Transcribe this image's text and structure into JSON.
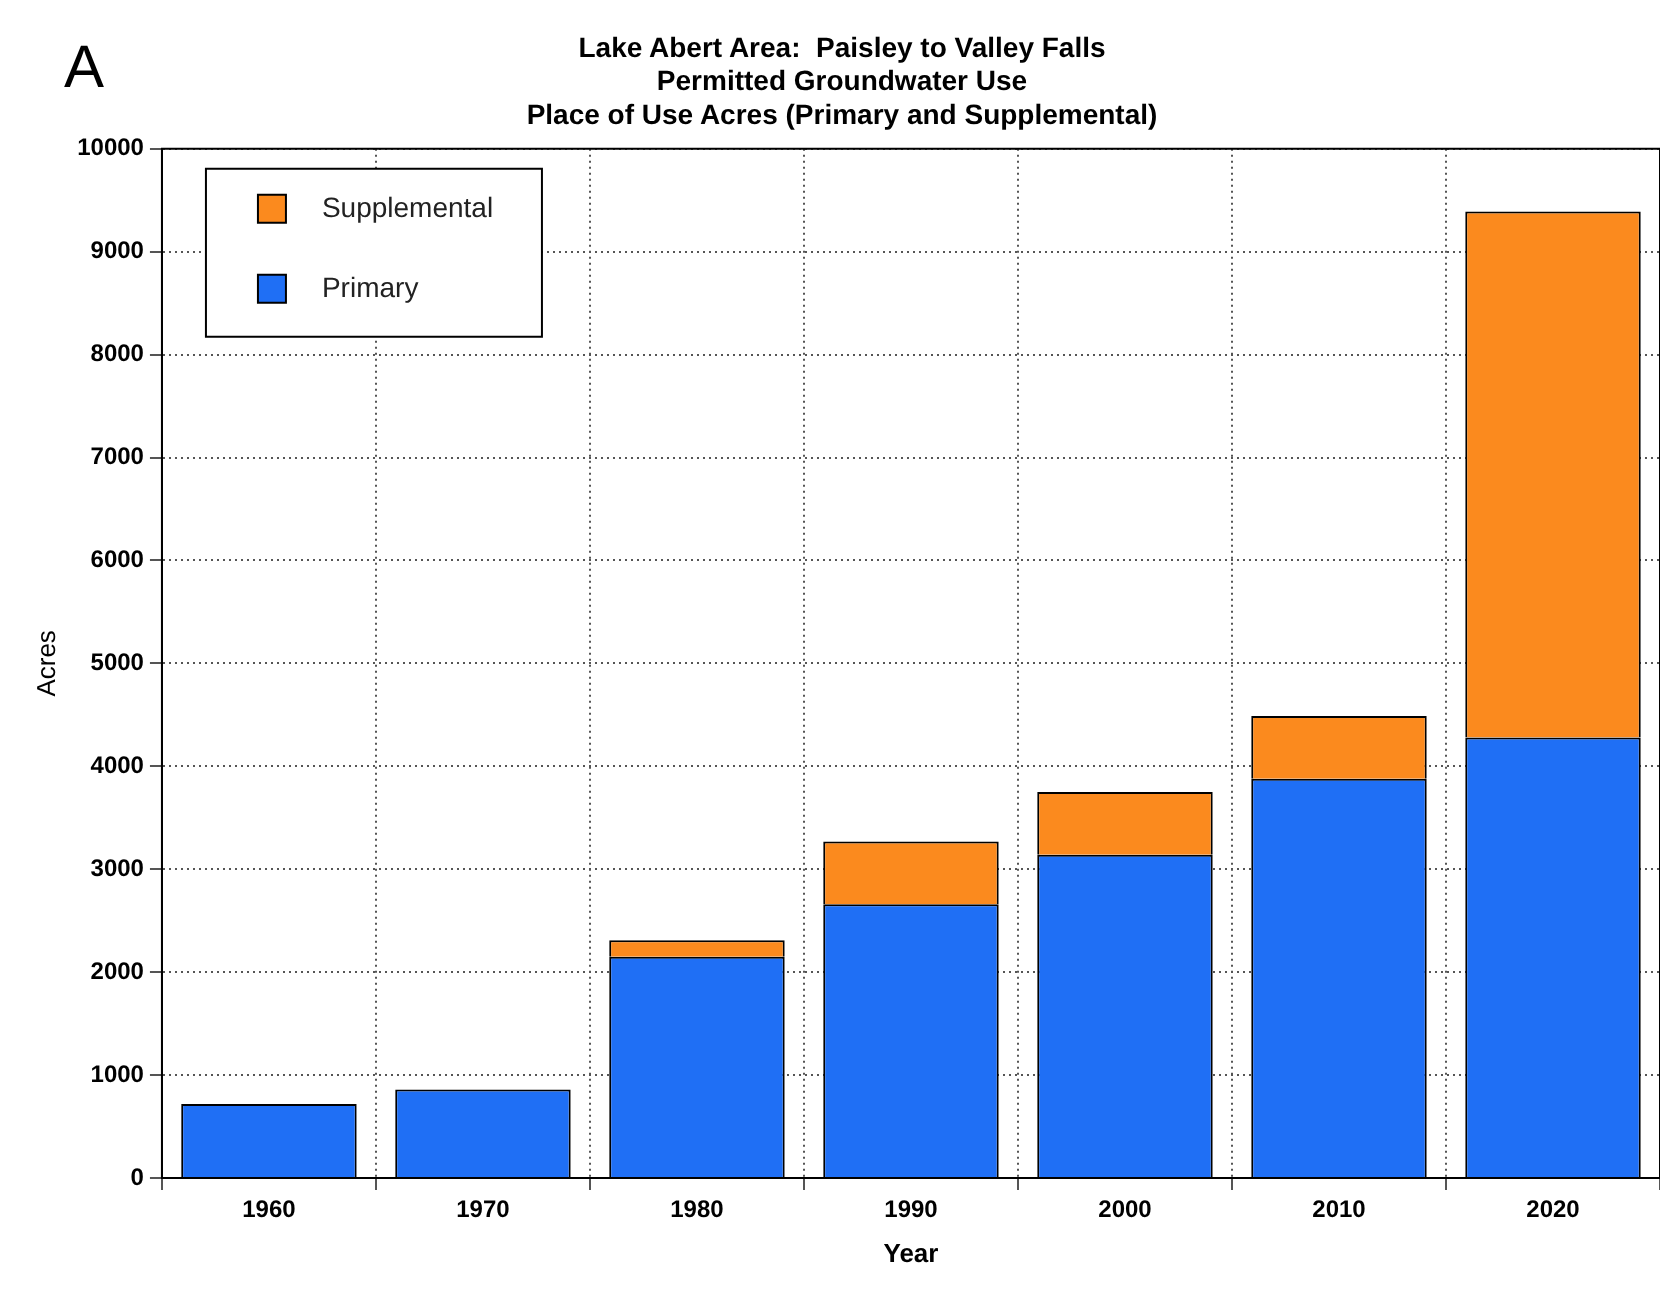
{
  "chart_data": {
    "type": "bar",
    "title": [
      "Lake Abert Area:  Paisley to Valley Falls",
      "Permitted Groundwater Use",
      "Place of Use Acres (Primary and Supplemental)"
    ],
    "xlabel": "Year",
    "ylabel": "Acres",
    "annotations": [
      "A"
    ],
    "categories": [
      "1960",
      "1970",
      "1980",
      "1990",
      "2000",
      "2010",
      "2020"
    ],
    "stacked": true,
    "series": [
      {
        "name": "Primary",
        "color": "#1f6ff5",
        "values": [
          720,
          860,
          2150,
          2660,
          3140,
          3880,
          4280
        ]
      },
      {
        "name": "Supplemental",
        "color": "#fb8a1e",
        "values": [
          0,
          0,
          160,
          610,
          610,
          610,
          5110
        ]
      }
    ],
    "ylim": [
      0,
      10000
    ],
    "yticks": [
      0,
      1000,
      2000,
      3000,
      4000,
      5000,
      6000,
      7000,
      8000,
      9000,
      10000
    ],
    "grid": true,
    "legend": "top left"
  }
}
